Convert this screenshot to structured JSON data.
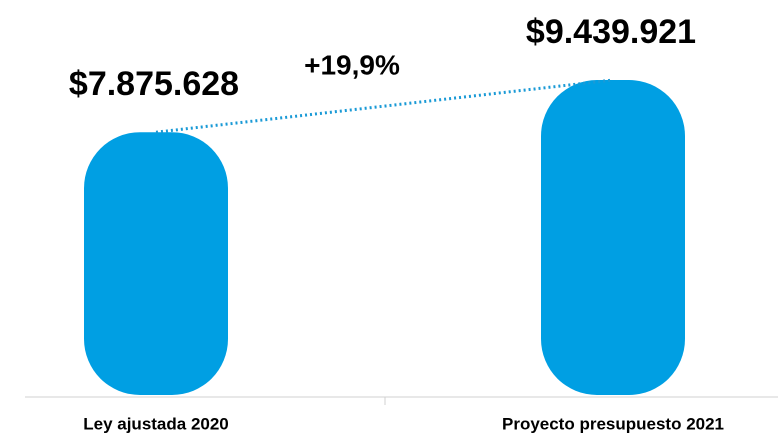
{
  "chart_data": {
    "type": "bar",
    "categories": [
      "Ley ajustada 2020",
      "Proyecto presupuesto 2021"
    ],
    "values": [
      7875628,
      9439921
    ],
    "value_labels": [
      "$7.875.628",
      "$9.439.921"
    ],
    "annotation": "+19,9%",
    "color": "#009fe3"
  }
}
